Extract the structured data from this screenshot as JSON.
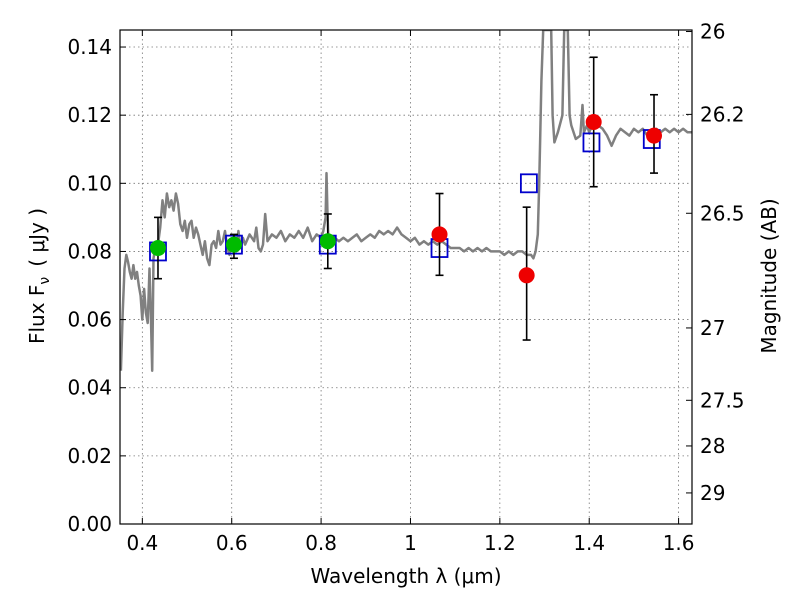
{
  "chart_data": {
    "type": "scatter",
    "xlabel": "Wavelength  λ (μm)",
    "ylabel_left": "Flux  F",
    "ylabel_left_sub": "ν",
    "ylabel_left_units": "( μJy )",
    "ylabel_right": "Magnitude (AB)",
    "xlim": [
      0.35,
      1.63
    ],
    "ylim": [
      0,
      0.145
    ],
    "grid": true,
    "x_ticks": [
      0.4,
      0.6,
      0.8,
      1.0,
      1.2,
      1.4,
      1.6
    ],
    "x_tick_labels": [
      "0.4",
      "0.6",
      "0.8",
      "1",
      "1.2",
      "1.4",
      "1.6"
    ],
    "y_ticks": [
      0,
      0.02,
      0.04,
      0.06,
      0.08,
      0.1,
      0.12,
      0.14
    ],
    "y_tick_labels": [
      "0.00",
      "0.02",
      "0.04",
      "0.06",
      "0.08",
      "0.10",
      "0.12",
      "0.14"
    ],
    "right_ticks": [
      {
        "mag": 26,
        "label": "26"
      },
      {
        "mag": 26.2,
        "label": "26.2"
      },
      {
        "mag": 26.5,
        "label": "26.5"
      },
      {
        "mag": 27,
        "label": "27"
      },
      {
        "mag": 27.5,
        "label": "27.5"
      },
      {
        "mag": 28,
        "label": "28"
      },
      {
        "mag": 29,
        "label": "29"
      }
    ],
    "series": [
      {
        "style": "line",
        "color": "#808080",
        "points": [
          [
            0.352,
            0.045
          ],
          [
            0.356,
            0.062
          ],
          [
            0.36,
            0.075
          ],
          [
            0.364,
            0.079
          ],
          [
            0.368,
            0.077
          ],
          [
            0.372,
            0.074
          ],
          [
            0.376,
            0.072
          ],
          [
            0.38,
            0.076
          ],
          [
            0.384,
            0.072
          ],
          [
            0.388,
            0.074
          ],
          [
            0.392,
            0.07
          ],
          [
            0.396,
            0.067
          ],
          [
            0.4,
            0.06
          ],
          [
            0.404,
            0.069
          ],
          [
            0.408,
            0.062
          ],
          [
            0.412,
            0.059
          ],
          [
            0.416,
            0.075
          ],
          [
            0.419,
            0.062
          ],
          [
            0.422,
            0.045
          ],
          [
            0.425,
            0.078
          ],
          [
            0.43,
            0.082
          ],
          [
            0.436,
            0.083
          ],
          [
            0.44,
            0.087
          ],
          [
            0.445,
            0.095
          ],
          [
            0.45,
            0.09
          ],
          [
            0.455,
            0.097
          ],
          [
            0.46,
            0.093
          ],
          [
            0.465,
            0.095
          ],
          [
            0.47,
            0.092
          ],
          [
            0.475,
            0.097
          ],
          [
            0.48,
            0.094
          ],
          [
            0.485,
            0.088
          ],
          [
            0.49,
            0.086
          ],
          [
            0.495,
            0.089
          ],
          [
            0.5,
            0.084
          ],
          [
            0.505,
            0.088
          ],
          [
            0.51,
            0.089
          ],
          [
            0.515,
            0.084
          ],
          [
            0.52,
            0.087
          ],
          [
            0.525,
            0.085
          ],
          [
            0.53,
            0.082
          ],
          [
            0.535,
            0.079
          ],
          [
            0.54,
            0.083
          ],
          [
            0.545,
            0.078
          ],
          [
            0.55,
            0.076
          ],
          [
            0.555,
            0.082
          ],
          [
            0.56,
            0.083
          ],
          [
            0.565,
            0.081
          ],
          [
            0.57,
            0.086
          ],
          [
            0.575,
            0.082
          ],
          [
            0.58,
            0.083
          ],
          [
            0.585,
            0.086
          ],
          [
            0.59,
            0.081
          ],
          [
            0.595,
            0.079
          ],
          [
            0.6,
            0.083
          ],
          [
            0.605,
            0.082
          ],
          [
            0.61,
            0.08
          ],
          [
            0.615,
            0.086
          ],
          [
            0.62,
            0.081
          ],
          [
            0.625,
            0.084
          ],
          [
            0.63,
            0.082
          ],
          [
            0.64,
            0.085
          ],
          [
            0.65,
            0.083
          ],
          [
            0.655,
            0.087
          ],
          [
            0.66,
            0.081
          ],
          [
            0.665,
            0.08
          ],
          [
            0.67,
            0.082
          ],
          [
            0.675,
            0.091
          ],
          [
            0.68,
            0.083
          ],
          [
            0.69,
            0.085
          ],
          [
            0.7,
            0.084
          ],
          [
            0.71,
            0.086
          ],
          [
            0.72,
            0.083
          ],
          [
            0.73,
            0.085
          ],
          [
            0.74,
            0.084
          ],
          [
            0.75,
            0.086
          ],
          [
            0.76,
            0.084
          ],
          [
            0.77,
            0.087
          ],
          [
            0.78,
            0.083
          ],
          [
            0.79,
            0.085
          ],
          [
            0.8,
            0.084
          ],
          [
            0.805,
            0.086
          ],
          [
            0.81,
            0.09
          ],
          [
            0.812,
            0.103
          ],
          [
            0.814,
            0.092
          ],
          [
            0.816,
            0.085
          ],
          [
            0.82,
            0.083
          ],
          [
            0.83,
            0.084
          ],
          [
            0.84,
            0.083
          ],
          [
            0.85,
            0.084
          ],
          [
            0.86,
            0.083
          ],
          [
            0.87,
            0.084
          ],
          [
            0.88,
            0.085
          ],
          [
            0.89,
            0.083
          ],
          [
            0.9,
            0.084
          ],
          [
            0.91,
            0.085
          ],
          [
            0.92,
            0.084
          ],
          [
            0.93,
            0.086
          ],
          [
            0.94,
            0.085
          ],
          [
            0.95,
            0.086
          ],
          [
            0.96,
            0.085
          ],
          [
            0.97,
            0.087
          ],
          [
            0.98,
            0.085
          ],
          [
            0.99,
            0.084
          ],
          [
            1.0,
            0.083
          ],
          [
            1.01,
            0.084
          ],
          [
            1.02,
            0.082
          ],
          [
            1.03,
            0.083
          ],
          [
            1.04,
            0.082
          ],
          [
            1.05,
            0.083
          ],
          [
            1.06,
            0.082
          ],
          [
            1.07,
            0.083
          ],
          [
            1.08,
            0.082
          ],
          [
            1.09,
            0.081
          ],
          [
            1.1,
            0.081
          ],
          [
            1.11,
            0.081
          ],
          [
            1.12,
            0.08
          ],
          [
            1.13,
            0.081
          ],
          [
            1.14,
            0.08
          ],
          [
            1.15,
            0.081
          ],
          [
            1.16,
            0.08
          ],
          [
            1.17,
            0.081
          ],
          [
            1.18,
            0.08
          ],
          [
            1.19,
            0.08
          ],
          [
            1.2,
            0.08
          ],
          [
            1.21,
            0.079
          ],
          [
            1.22,
            0.08
          ],
          [
            1.23,
            0.079
          ],
          [
            1.24,
            0.08
          ],
          [
            1.25,
            0.08
          ],
          [
            1.26,
            0.079
          ],
          [
            1.27,
            0.079
          ],
          [
            1.275,
            0.078
          ],
          [
            1.28,
            0.08
          ],
          [
            1.285,
            0.085
          ],
          [
            1.288,
            0.1
          ],
          [
            1.29,
            0.112
          ],
          [
            1.293,
            0.13
          ],
          [
            1.297,
            0.145
          ],
          [
            1.315,
            0.145
          ],
          [
            1.318,
            0.12
          ],
          [
            1.322,
            0.112
          ],
          [
            1.33,
            0.115
          ],
          [
            1.34,
            0.12
          ],
          [
            1.344,
            0.145
          ],
          [
            1.352,
            0.145
          ],
          [
            1.356,
            0.12
          ],
          [
            1.36,
            0.117
          ],
          [
            1.37,
            0.113
          ],
          [
            1.38,
            0.114
          ],
          [
            1.385,
            0.123
          ],
          [
            1.388,
            0.115
          ],
          [
            1.395,
            0.117
          ],
          [
            1.4,
            0.115
          ],
          [
            1.41,
            0.118
          ],
          [
            1.42,
            0.117
          ],
          [
            1.43,
            0.116
          ],
          [
            1.44,
            0.114
          ],
          [
            1.45,
            0.111
          ],
          [
            1.46,
            0.114
          ],
          [
            1.47,
            0.116
          ],
          [
            1.48,
            0.115
          ],
          [
            1.49,
            0.114
          ],
          [
            1.5,
            0.116
          ],
          [
            1.51,
            0.115
          ],
          [
            1.52,
            0.116
          ],
          [
            1.53,
            0.114
          ],
          [
            1.54,
            0.115
          ],
          [
            1.55,
            0.116
          ],
          [
            1.56,
            0.115
          ],
          [
            1.57,
            0.116
          ],
          [
            1.58,
            0.115
          ],
          [
            1.59,
            0.116
          ],
          [
            1.6,
            0.115
          ],
          [
            1.61,
            0.116
          ],
          [
            1.62,
            0.115
          ],
          [
            1.63,
            0.115
          ]
        ]
      },
      {
        "style": "open-square",
        "color": "#0000cc",
        "points": [
          [
            0.435,
            0.08
          ],
          [
            0.605,
            0.082
          ],
          [
            0.815,
            0.082
          ],
          [
            1.065,
            0.081
          ],
          [
            1.265,
            0.1
          ],
          [
            1.405,
            0.112
          ],
          [
            1.54,
            0.113
          ]
        ]
      },
      {
        "style": "filled-circle",
        "color": "#00bb00",
        "points": [
          {
            "x": 0.435,
            "y": 0.081,
            "err": [
              0.072,
              0.09
            ]
          },
          {
            "x": 0.605,
            "y": 0.082,
            "err": [
              0.078,
              0.085
            ]
          },
          {
            "x": 0.815,
            "y": 0.083,
            "err": [
              0.075,
              0.091
            ]
          }
        ]
      },
      {
        "style": "filled-circle",
        "color": "#ee0000",
        "points": [
          {
            "x": 1.065,
            "y": 0.085,
            "err": [
              0.073,
              0.097
            ]
          },
          {
            "x": 1.26,
            "y": 0.073,
            "err": [
              0.054,
              0.093
            ]
          },
          {
            "x": 1.41,
            "y": 0.118,
            "err": [
              0.099,
              0.137
            ]
          },
          {
            "x": 1.545,
            "y": 0.114,
            "err": [
              0.103,
              0.126
            ]
          }
        ]
      }
    ]
  }
}
